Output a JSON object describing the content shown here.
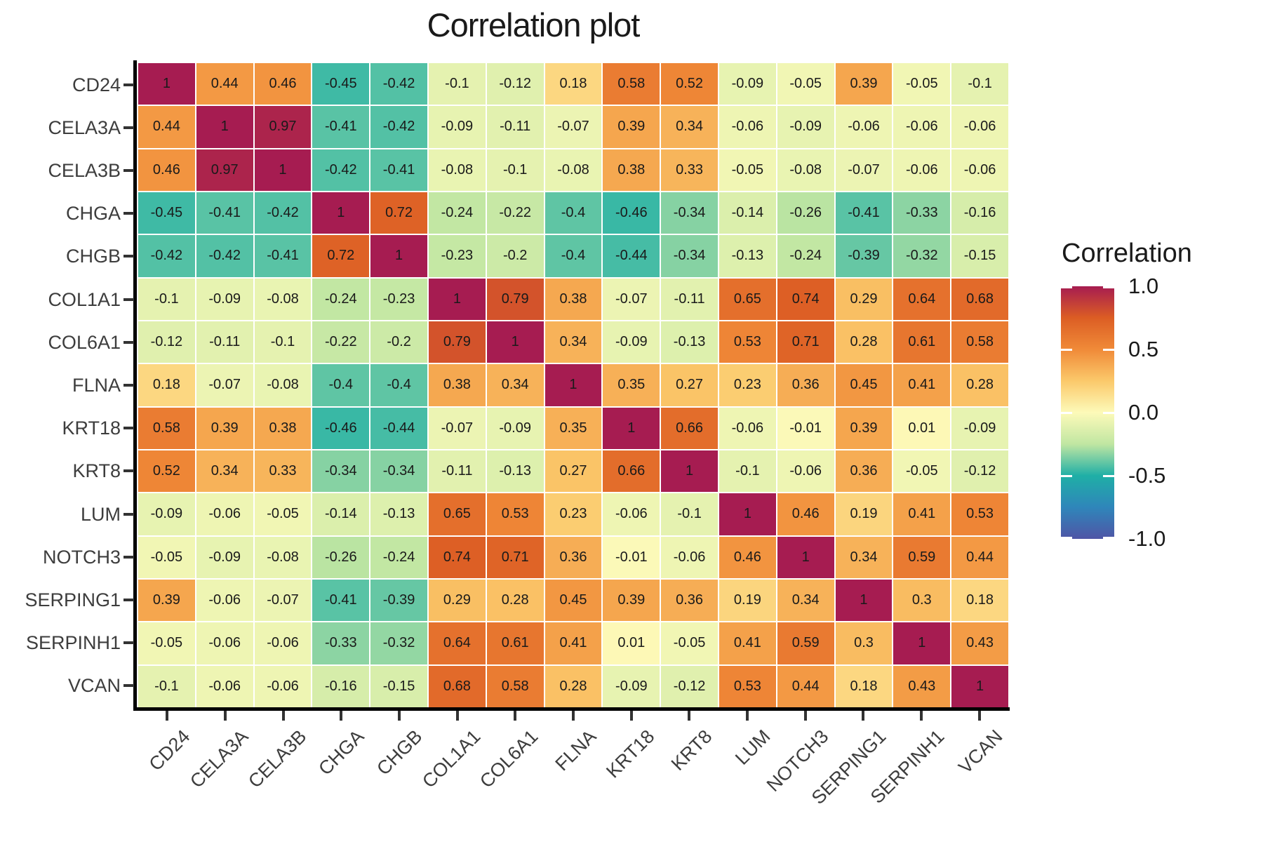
{
  "title": "Correlation plot",
  "legend": {
    "title": "Correlation",
    "ticks": [
      {
        "label": "1.0",
        "value": 1
      },
      {
        "label": "0.5",
        "value": 0.5
      },
      {
        "label": "0.0",
        "value": 0
      },
      {
        "label": "-0.5",
        "value": -0.5
      },
      {
        "label": "-1.0",
        "value": -1
      }
    ]
  },
  "colors": {
    "background": "#FFFFFF",
    "axis_line": "#000000",
    "axis_text": "#3D3D3D",
    "cell_text": "#1A1A1A",
    "grid_gap": "#FFFFFF"
  },
  "chart_data": {
    "type": "heatmap",
    "title": "Correlation plot",
    "legend_title": "Correlation",
    "legend_ticks": [
      1.0,
      0.5,
      0.0,
      -0.5,
      -1.0
    ],
    "zlim": [
      -1,
      1
    ],
    "categories": [
      "CD24",
      "CELA3A",
      "CELA3B",
      "CHGA",
      "CHGB",
      "COL1A1",
      "COL6A1",
      "FLNA",
      "KRT18",
      "KRT8",
      "LUM",
      "NOTCH3",
      "SERPING1",
      "SERPINH1",
      "VCAN"
    ],
    "values": [
      [
        1,
        0.44,
        0.46,
        -0.45,
        -0.42,
        -0.1,
        -0.12,
        0.18,
        0.58,
        0.52,
        -0.09,
        -0.05,
        0.39,
        -0.05,
        -0.1
      ],
      [
        0.44,
        1,
        0.97,
        -0.41,
        -0.42,
        -0.09,
        -0.11,
        -0.07,
        0.39,
        0.34,
        -0.06,
        -0.09,
        -0.06,
        -0.06,
        -0.06
      ],
      [
        0.46,
        0.97,
        1,
        -0.42,
        -0.41,
        -0.08,
        -0.1,
        -0.08,
        0.38,
        0.33,
        -0.05,
        -0.08,
        -0.07,
        -0.06,
        -0.06
      ],
      [
        -0.45,
        -0.41,
        -0.42,
        1,
        0.72,
        -0.24,
        -0.22,
        -0.4,
        -0.46,
        -0.34,
        -0.14,
        -0.26,
        -0.41,
        -0.33,
        -0.16
      ],
      [
        -0.42,
        -0.42,
        -0.41,
        0.72,
        1,
        -0.23,
        -0.2,
        -0.4,
        -0.44,
        -0.34,
        -0.13,
        -0.24,
        -0.39,
        -0.32,
        -0.15
      ],
      [
        -0.1,
        -0.09,
        -0.08,
        -0.24,
        -0.23,
        1,
        0.79,
        0.38,
        -0.07,
        -0.11,
        0.65,
        0.74,
        0.29,
        0.64,
        0.68
      ],
      [
        -0.12,
        -0.11,
        -0.1,
        -0.22,
        -0.2,
        0.79,
        1,
        0.34,
        -0.09,
        -0.13,
        0.53,
        0.71,
        0.28,
        0.61,
        0.58
      ],
      [
        0.18,
        -0.07,
        -0.08,
        -0.4,
        -0.4,
        0.38,
        0.34,
        1,
        0.35,
        0.27,
        0.23,
        0.36,
        0.45,
        0.41,
        0.28
      ],
      [
        0.58,
        0.39,
        0.38,
        -0.46,
        -0.44,
        -0.07,
        -0.09,
        0.35,
        1,
        0.66,
        -0.06,
        -0.01,
        0.39,
        0.01,
        -0.09
      ],
      [
        0.52,
        0.34,
        0.33,
        -0.34,
        -0.34,
        -0.11,
        -0.13,
        0.27,
        0.66,
        1,
        -0.1,
        -0.06,
        0.36,
        -0.05,
        -0.12
      ],
      [
        -0.09,
        -0.06,
        -0.05,
        -0.14,
        -0.13,
        0.65,
        0.53,
        0.23,
        -0.06,
        -0.1,
        1,
        0.46,
        0.19,
        0.41,
        0.53
      ],
      [
        -0.05,
        -0.09,
        -0.08,
        -0.26,
        -0.24,
        0.74,
        0.71,
        0.36,
        -0.01,
        -0.06,
        0.46,
        1,
        0.34,
        0.59,
        0.44
      ],
      [
        0.39,
        -0.06,
        -0.07,
        -0.41,
        -0.39,
        0.29,
        0.28,
        0.45,
        0.39,
        0.36,
        0.19,
        0.34,
        1,
        0.3,
        0.18
      ],
      [
        -0.05,
        -0.06,
        -0.06,
        -0.33,
        -0.32,
        0.64,
        0.61,
        0.41,
        0.01,
        -0.05,
        0.41,
        0.59,
        0.3,
        1,
        0.43
      ],
      [
        -0.1,
        -0.06,
        -0.06,
        -0.16,
        -0.15,
        0.68,
        0.58,
        0.28,
        -0.09,
        -0.12,
        0.53,
        0.44,
        0.18,
        0.43,
        1
      ]
    ],
    "color_stops": [
      {
        "value": -1,
        "color": "#4F55A6"
      },
      {
        "value": -0.75,
        "color": "#2F86BA"
      },
      {
        "value": -0.5,
        "color": "#1FAFA6"
      },
      {
        "value": -0.25,
        "color": "#C0E6A2"
      },
      {
        "value": 0,
        "color": "#FDFAB9"
      },
      {
        "value": 0.25,
        "color": "#FBC96B"
      },
      {
        "value": 0.5,
        "color": "#F08A38"
      },
      {
        "value": 0.75,
        "color": "#DC5D24"
      },
      {
        "value": 1,
        "color": "#A61C51"
      }
    ]
  }
}
